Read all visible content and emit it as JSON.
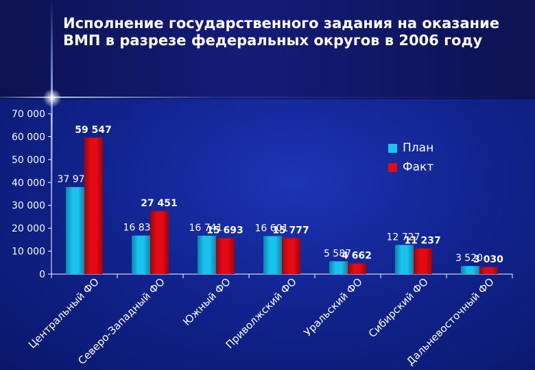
{
  "slide": {
    "title": "Исполнение государственного задания на оказание ВМП в разрезе федеральных округов в 2006 году"
  },
  "colors": {
    "plan": "#18c4ee",
    "fact": "#e40a14"
  },
  "chart_data": {
    "type": "bar",
    "title": "Исполнение государственного задания на оказание ВМП в разрезе федеральных округов в 2006 году",
    "categories": [
      "Центральный ФО",
      "Северо-Западный ФО",
      "Южный ФО",
      "Приволжский ФО",
      "Уральский ФО",
      "Сибирский ФО",
      "Дальневосточный ФО"
    ],
    "series": [
      {
        "name": "План",
        "values": [
          37971,
          16831,
          16741,
          16601,
          5587,
          12727,
          3520
        ],
        "labels": [
          "37 971",
          "16 831",
          "16 741",
          "16 601",
          "5 587",
          "12 727",
          "3 520"
        ]
      },
      {
        "name": "Факт",
        "values": [
          59547,
          27451,
          15693,
          15777,
          4662,
          11237,
          3030
        ],
        "labels": [
          "59 547",
          "27 451",
          "15 693",
          "15 777",
          "4 662",
          "11 237",
          "3 030"
        ]
      }
    ],
    "ylim": [
      0,
      70000
    ],
    "yticks": [
      0,
      10000,
      20000,
      30000,
      40000,
      50000,
      60000,
      70000
    ],
    "ytick_labels": [
      "0",
      "10 000",
      "20 000",
      "30 000",
      "40 000",
      "50 000",
      "60 000",
      "70 000"
    ],
    "grid": false,
    "legend": "right"
  }
}
